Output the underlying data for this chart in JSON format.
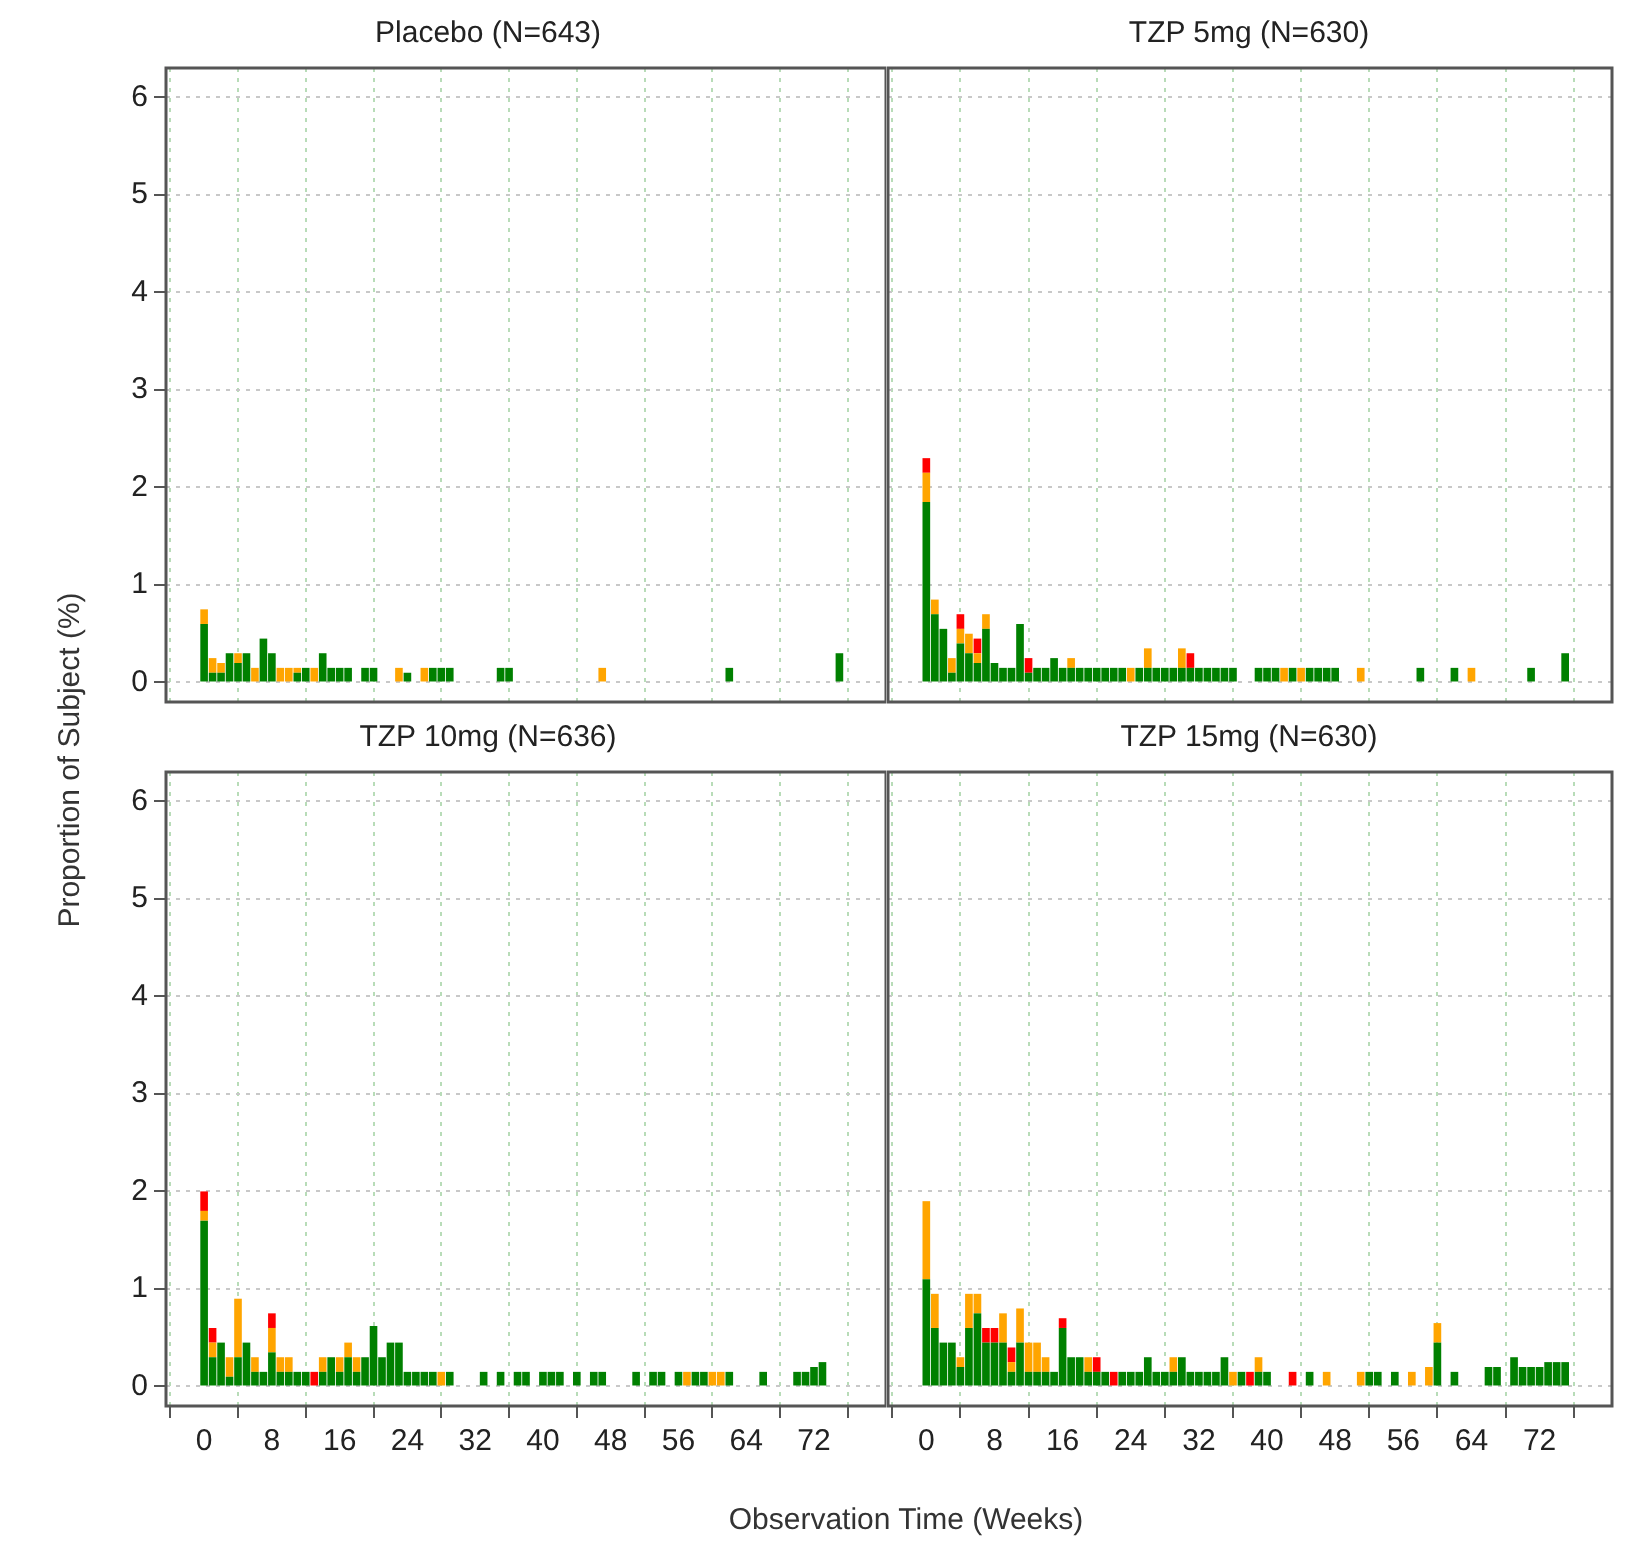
{
  "chart_data": [
    {
      "type": "bar",
      "title": "Placebo (N=643)",
      "ylabel": "Proportion of Subject (%)",
      "stacked": true,
      "grid": true,
      "tick_labels": "y",
      "xlim": [
        -4.5,
        80.5
      ],
      "xticks": [
        0,
        8,
        16,
        24,
        32,
        40,
        48,
        56,
        64,
        72
      ],
      "ylim": [
        -0.2,
        6.3
      ],
      "yticks": [
        0,
        1,
        2,
        3,
        4,
        5,
        6
      ],
      "x": [
        0,
        1,
        2,
        3,
        4,
        5,
        6,
        7,
        8,
        9,
        10,
        11,
        12,
        13,
        14,
        15,
        16,
        17,
        19,
        20,
        23,
        24,
        26,
        27,
        28,
        29,
        35,
        36,
        47,
        62,
        75
      ],
      "series": [
        {
          "color": "#008000",
          "values": [
            0.6,
            0.1,
            0.1,
            0.3,
            0.2,
            0.3,
            null,
            0.45,
            0.3,
            null,
            null,
            0.1,
            0.15,
            null,
            0.3,
            0.15,
            0.15,
            0.15,
            0.15,
            0.15,
            null,
            0.1,
            null,
            0.15,
            0.15,
            0.15,
            0.15,
            0.15,
            null,
            0.15,
            0.3
          ]
        },
        {
          "color": "#ffa500",
          "values": [
            0.15,
            0.15,
            0.1,
            null,
            0.1,
            null,
            0.15,
            null,
            null,
            0.15,
            0.15,
            0.05,
            null,
            0.15,
            null,
            null,
            null,
            null,
            null,
            null,
            0.15,
            null,
            0.15,
            null,
            null,
            null,
            null,
            null,
            0.15,
            null,
            null
          ]
        }
      ]
    },
    {
      "type": "bar",
      "title": "TZP 5mg (N=630)",
      "stacked": true,
      "grid": true,
      "tick_labels": false,
      "xlim": [
        -4.5,
        80.5
      ],
      "xticks": [
        0,
        8,
        16,
        24,
        32,
        40,
        48,
        56,
        64,
        72
      ],
      "ylim": [
        -0.2,
        6.3
      ],
      "yticks": [
        0,
        1,
        2,
        3,
        4,
        5,
        6
      ],
      "x": [
        0,
        1,
        2,
        3,
        4,
        5,
        6,
        7,
        8,
        9,
        10,
        11,
        12,
        13,
        14,
        15,
        16,
        17,
        18,
        19,
        20,
        21,
        22,
        23,
        24,
        25,
        26,
        27,
        28,
        29,
        30,
        31,
        32,
        33,
        34,
        35,
        36,
        39,
        40,
        41,
        42,
        43,
        44,
        45,
        46,
        47,
        48,
        51,
        58,
        62,
        64,
        71,
        75
      ],
      "series": [
        {
          "color": "#008000",
          "values": [
            1.85,
            0.7,
            0.55,
            0.1,
            0.4,
            0.3,
            0.2,
            0.55,
            0.2,
            0.15,
            0.15,
            0.6,
            0.1,
            0.15,
            0.15,
            0.25,
            0.15,
            0.15,
            0.15,
            0.15,
            0.15,
            0.15,
            0.15,
            0.15,
            null,
            0.15,
            0.15,
            0.15,
            0.15,
            0.15,
            0.15,
            0.15,
            0.15,
            0.15,
            0.15,
            0.15,
            0.15,
            0.15,
            0.15,
            0.15,
            null,
            0.15,
            null,
            0.15,
            0.15,
            0.15,
            0.15,
            null,
            0.15,
            0.15,
            null,
            0.15,
            0.3
          ]
        },
        {
          "color": "#ffa500",
          "values": [
            0.3,
            0.15,
            null,
            0.15,
            0.15,
            0.2,
            0.1,
            0.15,
            null,
            null,
            null,
            null,
            null,
            null,
            null,
            null,
            null,
            0.1,
            null,
            null,
            null,
            null,
            null,
            null,
            0.15,
            null,
            0.2,
            null,
            null,
            null,
            0.2,
            null,
            null,
            null,
            null,
            null,
            null,
            null,
            null,
            null,
            0.15,
            null,
            0.15,
            null,
            null,
            null,
            null,
            0.15,
            null,
            null,
            0.15,
            null,
            null
          ]
        },
        {
          "color": "#ff0000",
          "values": [
            0.15,
            null,
            null,
            null,
            0.15,
            null,
            0.15,
            null,
            null,
            null,
            null,
            null,
            0.15,
            null,
            null,
            null,
            null,
            null,
            null,
            null,
            null,
            null,
            null,
            null,
            null,
            null,
            null,
            null,
            null,
            null,
            null,
            0.15,
            null,
            null,
            null,
            null,
            null,
            null,
            null,
            null,
            null,
            null,
            null,
            null,
            null,
            null,
            null,
            null,
            null,
            null,
            null,
            null,
            null
          ]
        }
      ]
    },
    {
      "type": "bar",
      "title": "TZP 10mg (N=636)",
      "xlabel": "Observation Time (Weeks)",
      "stacked": true,
      "grid": true,
      "xlim": [
        -4.5,
        80.5
      ],
      "xticks": [
        0,
        8,
        16,
        24,
        32,
        40,
        48,
        56,
        64,
        72
      ],
      "ylim": [
        -0.2,
        6.3
      ],
      "yticks": [
        0,
        1,
        2,
        3,
        4,
        5,
        6
      ],
      "x": [
        0,
        1,
        2,
        3,
        4,
        5,
        6,
        7,
        8,
        9,
        10,
        11,
        12,
        13,
        14,
        15,
        16,
        17,
        18,
        19,
        20,
        21,
        22,
        23,
        24,
        25,
        26,
        27,
        28,
        29,
        33,
        35,
        37,
        38,
        40,
        41,
        42,
        44,
        46,
        47,
        51,
        53,
        54,
        56,
        57,
        58,
        59,
        60,
        61,
        62,
        66,
        70,
        71,
        72,
        73
      ],
      "series": [
        {
          "color": "#008000",
          "values": [
            1.7,
            0.3,
            0.45,
            0.1,
            0.3,
            0.45,
            0.15,
            0.15,
            0.35,
            0.15,
            0.15,
            0.15,
            0.15,
            null,
            0.15,
            0.3,
            0.15,
            0.3,
            0.15,
            0.3,
            0.62,
            0.3,
            0.45,
            0.45,
            0.15,
            0.15,
            0.15,
            0.15,
            null,
            0.15,
            0.15,
            0.15,
            0.15,
            0.15,
            0.15,
            0.15,
            0.15,
            0.15,
            0.15,
            0.15,
            0.15,
            0.15,
            0.15,
            0.15,
            null,
            0.15,
            0.15,
            null,
            null,
            0.15,
            0.15,
            0.15,
            0.15,
            0.2,
            0.25
          ]
        },
        {
          "color": "#ffa500",
          "values": [
            0.1,
            0.15,
            null,
            0.2,
            0.6,
            null,
            0.15,
            null,
            0.25,
            0.15,
            0.15,
            null,
            null,
            null,
            0.15,
            null,
            0.15,
            0.15,
            0.15,
            null,
            null,
            null,
            null,
            null,
            null,
            null,
            null,
            null,
            0.15,
            null,
            null,
            null,
            null,
            null,
            null,
            null,
            null,
            null,
            null,
            null,
            null,
            null,
            null,
            null,
            0.15,
            null,
            null,
            0.15,
            0.15,
            null,
            null,
            null,
            null,
            null,
            null
          ]
        },
        {
          "color": "#ff0000",
          "values": [
            0.2,
            0.15,
            null,
            null,
            null,
            null,
            null,
            null,
            0.15,
            null,
            null,
            null,
            null,
            0.15,
            null,
            null,
            null,
            null,
            null,
            null,
            null,
            null,
            null,
            null,
            null,
            null,
            null,
            null,
            null,
            null,
            null,
            null,
            null,
            null,
            null,
            null,
            null,
            null,
            null,
            null,
            null,
            null,
            null,
            null,
            null,
            null,
            null,
            null,
            null,
            null,
            null,
            null,
            null,
            null,
            null
          ]
        }
      ]
    },
    {
      "type": "bar",
      "title": "TZP 15mg (N=630)",
      "stacked": true,
      "grid": true,
      "tick_labels": "x",
      "xlim": [
        -4.5,
        80.5
      ],
      "xticks": [
        0,
        8,
        16,
        24,
        32,
        40,
        48,
        56,
        64,
        72
      ],
      "ylim": [
        -0.2,
        6.3
      ],
      "yticks": [
        0,
        1,
        2,
        3,
        4,
        5,
        6
      ],
      "x": [
        0,
        1,
        2,
        3,
        4,
        5,
        6,
        7,
        8,
        9,
        10,
        11,
        12,
        13,
        14,
        15,
        16,
        17,
        18,
        19,
        20,
        21,
        22,
        23,
        24,
        25,
        26,
        27,
        28,
        29,
        30,
        31,
        32,
        33,
        34,
        35,
        36,
        37,
        38,
        39,
        40,
        43,
        45,
        47,
        51,
        52,
        53,
        55,
        57,
        59,
        60,
        62,
        66,
        67,
        69,
        70,
        71,
        72,
        73,
        74,
        75
      ],
      "series": [
        {
          "color": "#008000",
          "values": [
            1.1,
            0.6,
            0.45,
            0.45,
            0.2,
            0.6,
            0.75,
            0.45,
            0.45,
            0.45,
            0.15,
            0.45,
            0.15,
            0.15,
            0.15,
            0.15,
            0.6,
            0.3,
            0.3,
            0.15,
            0.15,
            0.15,
            null,
            0.15,
            0.15,
            0.15,
            0.3,
            0.15,
            0.15,
            0.15,
            0.3,
            0.15,
            0.15,
            0.15,
            0.15,
            0.3,
            null,
            0.15,
            null,
            0.15,
            0.15,
            null,
            0.15,
            null,
            null,
            0.15,
            0.15,
            0.15,
            null,
            null,
            0.45,
            0.15,
            0.2,
            0.2,
            0.3,
            0.2,
            0.2,
            0.2,
            0.25,
            0.25,
            0.25
          ]
        },
        {
          "color": "#ffa500",
          "values": [
            0.8,
            0.35,
            null,
            null,
            0.1,
            0.35,
            0.2,
            null,
            null,
            0.3,
            0.1,
            0.35,
            0.3,
            0.3,
            0.15,
            null,
            null,
            null,
            null,
            0.15,
            null,
            null,
            null,
            null,
            null,
            null,
            null,
            null,
            null,
            0.15,
            null,
            null,
            null,
            null,
            null,
            null,
            0.15,
            null,
            null,
            0.15,
            null,
            null,
            null,
            0.15,
            0.15,
            null,
            null,
            null,
            0.15,
            0.2,
            0.2,
            null,
            null,
            null,
            null,
            null,
            null,
            null,
            null,
            null,
            null
          ]
        },
        {
          "color": "#ff0000",
          "values": [
            null,
            null,
            null,
            null,
            null,
            null,
            null,
            0.15,
            0.15,
            null,
            0.15,
            null,
            null,
            null,
            null,
            null,
            0.1,
            null,
            null,
            null,
            0.15,
            null,
            0.15,
            null,
            null,
            null,
            null,
            null,
            null,
            null,
            null,
            null,
            null,
            null,
            null,
            null,
            null,
            null,
            0.15,
            null,
            null,
            0.15,
            null,
            null,
            null,
            null,
            null,
            null,
            null,
            null,
            null,
            null,
            null,
            null,
            null,
            null,
            null,
            null,
            null,
            null,
            null
          ]
        }
      ]
    }
  ]
}
